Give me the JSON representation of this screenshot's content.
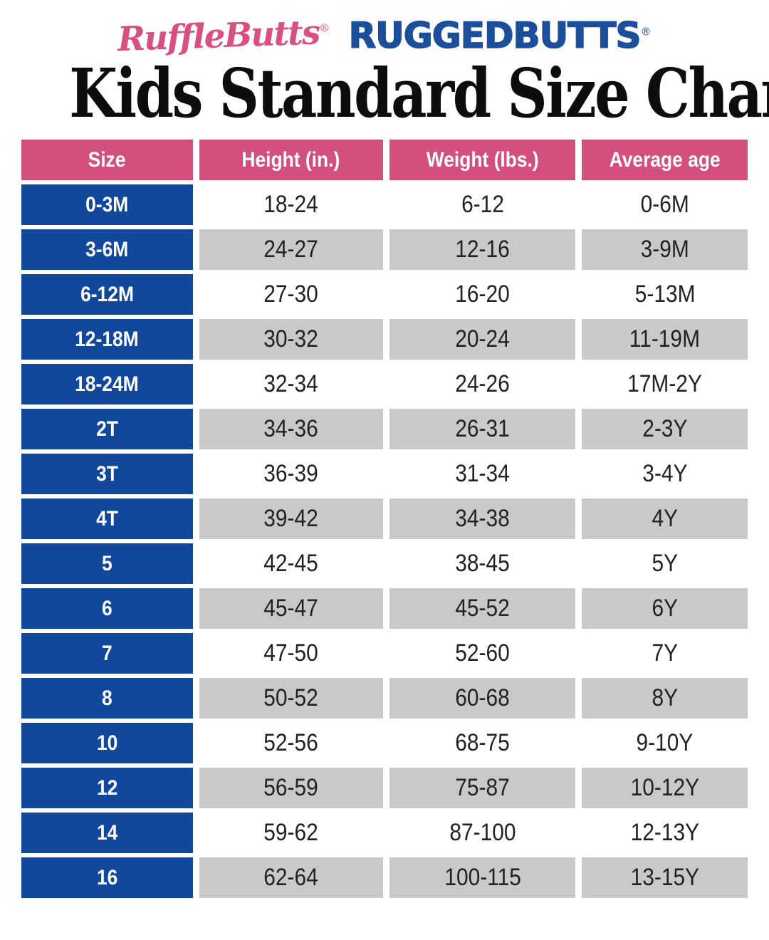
{
  "brand": {
    "rufflebutts": "RuffleButts",
    "ruggedbutts": "RUGGEDBUTTS",
    "registered": "®"
  },
  "title": "Kids Standard Size Chart",
  "colors": {
    "header-pink": "#d34f7d",
    "size-blue": "#11489c",
    "shade-gray": "#c9c9c9",
    "logo-pink": "#d94f80",
    "logo-blue": "#1b4e9b",
    "data-text": "#222222"
  },
  "chart_data": {
    "type": "table",
    "title": "Kids Standard Size Chart",
    "columns": [
      "Size",
      "Height (in.)",
      "Weight (lbs.)",
      "Average age"
    ],
    "rows": [
      [
        "0-3M",
        "18-24",
        "6-12",
        "0-6M"
      ],
      [
        "3-6M",
        "24-27",
        "12-16",
        "3-9M"
      ],
      [
        "6-12M",
        "27-30",
        "16-20",
        "5-13M"
      ],
      [
        "12-18M",
        "30-32",
        "20-24",
        "11-19M"
      ],
      [
        "18-24M",
        "32-34",
        "24-26",
        "17M-2Y"
      ],
      [
        "2T",
        "34-36",
        "26-31",
        "2-3Y"
      ],
      [
        "3T",
        "36-39",
        "31-34",
        "3-4Y"
      ],
      [
        "4T",
        "39-42",
        "34-38",
        "4Y"
      ],
      [
        "5",
        "42-45",
        "38-45",
        "5Y"
      ],
      [
        "6",
        "45-47",
        "45-52",
        "6Y"
      ],
      [
        "7",
        "47-50",
        "52-60",
        "7Y"
      ],
      [
        "8",
        "50-52",
        "60-68",
        "8Y"
      ],
      [
        "10",
        "52-56",
        "68-75",
        "9-10Y"
      ],
      [
        "12",
        "56-59",
        "75-87",
        "10-12Y"
      ],
      [
        "14",
        "59-62",
        "87-100",
        "12-13Y"
      ],
      [
        "16",
        "62-64",
        "100-115",
        "13-15Y"
      ]
    ],
    "layout": {
      "striping": "odd rows white, even rows gray",
      "size_column_style": "solid blue with white bold text",
      "header_style": "solid pink with white bold text"
    }
  }
}
